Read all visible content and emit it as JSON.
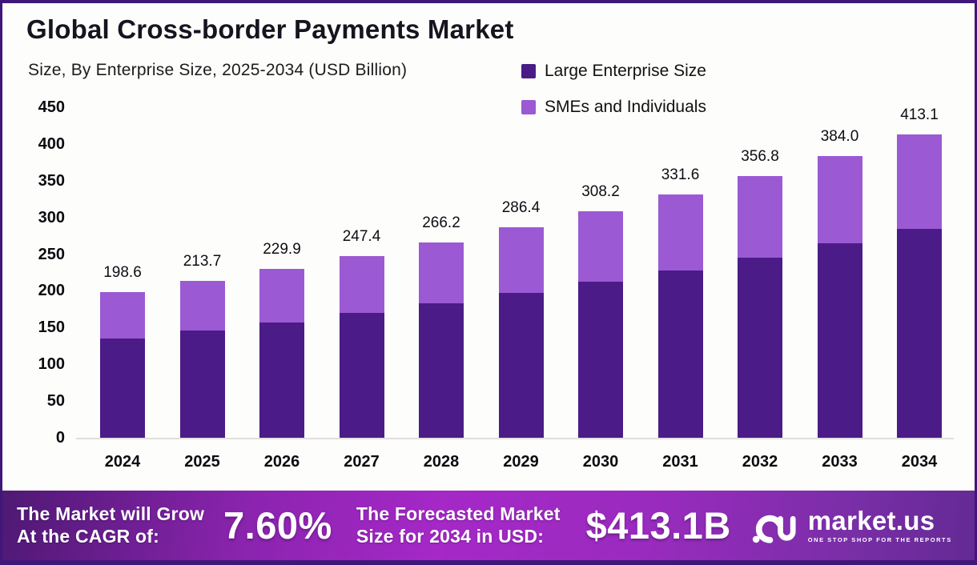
{
  "header": {
    "title": "Global Cross-border Payments Market",
    "subtitle": "Size, By Enterprise Size, 2025-2034 (USD Billion)"
  },
  "legend": [
    {
      "label": "Large Enterprise Size",
      "color": "#4a1d86",
      "icon": "legend-swatch-dark"
    },
    {
      "label": "SMEs and Individuals",
      "color": "#9b59d3",
      "icon": "legend-swatch-light"
    }
  ],
  "chart_data": {
    "type": "bar",
    "stacked": true,
    "title": "Global Cross-border Payments Market",
    "subtitle": "Size, By Enterprise Size, 2025-2034 (USD Billion)",
    "xlabel": "",
    "ylabel": "",
    "categories": [
      "2024",
      "2025",
      "2026",
      "2027",
      "2028",
      "2029",
      "2030",
      "2031",
      "2032",
      "2033",
      "2034"
    ],
    "series": [
      {
        "name": "Large Enterprise Size",
        "color": "#4b1b88",
        "values": [
          135.0,
          146.0,
          157.0,
          170.0,
          183.0,
          197.0,
          212.0,
          228.0,
          245.0,
          265.0,
          284.0
        ]
      },
      {
        "name": "SMEs and Individuals",
        "color": "#9b59d3",
        "values": [
          63.6,
          67.7,
          72.9,
          77.4,
          83.2,
          89.4,
          96.2,
          103.6,
          111.8,
          119.0,
          129.1
        ]
      }
    ],
    "totals": [
      198.6,
      213.7,
      229.9,
      247.4,
      266.2,
      286.4,
      308.2,
      331.6,
      356.8,
      384.0,
      413.1
    ],
    "total_labels": [
      "198.6",
      "213.7",
      "229.9",
      "247.4",
      "266.2",
      "286.4",
      "308.2",
      "331.6",
      "356.8",
      "384.0",
      "413.1"
    ],
    "ylim": [
      0,
      450
    ],
    "yticks": [
      450,
      400,
      350,
      300,
      250,
      200,
      150,
      100,
      50,
      0
    ],
    "grid": false,
    "legend_position": "top-right"
  },
  "banner": {
    "cagr_line1": "The Market will Grow",
    "cagr_line2": "At the CAGR of:",
    "cagr_value": "7.60%",
    "forecast_line1": "The Forecasted Market",
    "forecast_line2": "Size for 2034 in USD:",
    "forecast_value": "$413.1B",
    "brand": "market.us",
    "tagline": "ONE STOP SHOP FOR THE REPORTS"
  },
  "colors": {
    "frame_border": "#3f177a",
    "background": "#fdfdfb",
    "series_dark": "#4b1b88",
    "series_light": "#9b59d3",
    "banner_gradient_mid": "#a528c7",
    "baseline": "#e2dedd"
  }
}
